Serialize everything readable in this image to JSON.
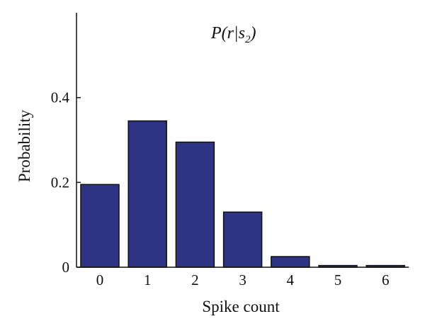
{
  "chart_data": {
    "type": "bar",
    "title": {
      "prefix": "P(r|s",
      "subscript": "2",
      "suffix": ")"
    },
    "xlabel": "Spike count",
    "ylabel": "Probability",
    "categories": [
      "0",
      "1",
      "2",
      "3",
      "4",
      "5",
      "6"
    ],
    "values": [
      0.195,
      0.345,
      0.295,
      0.13,
      0.025,
      0.004,
      0.004
    ],
    "ylim": [
      0,
      0.6
    ],
    "yticks": [
      {
        "value": 0,
        "label": "0"
      },
      {
        "value": 0.2,
        "label": "0.2"
      },
      {
        "value": 0.4,
        "label": "0.4"
      }
    ],
    "grid": false,
    "colors": {
      "bar_fill": "#2e3383",
      "bar_stroke": "#111111",
      "axis": "#111111"
    }
  }
}
